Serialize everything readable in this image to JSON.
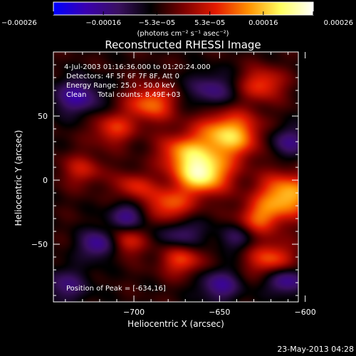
{
  "chart_data": {
    "type": "heatmap",
    "title": "Reconstructed RHESSI Image",
    "xlabel": "Heliocentric X (arcsec)",
    "ylabel": "Heliocentric Y (arcsec)",
    "xlim": [
      -747,
      -604
    ],
    "ylim": [
      -95,
      100
    ],
    "x_ticks": [
      -700,
      -650,
      -600
    ],
    "y_ticks": [
      50,
      0,
      -50
    ],
    "x_tick_labels": [
      "−700",
      "−650",
      "−600"
    ],
    "y_tick_labels": [
      "50",
      "0",
      "−50"
    ],
    "colorbar": {
      "range": [
        -0.00026,
        0.00026
      ],
      "ticks": [
        -0.00026,
        -0.00016,
        -5.3e-05,
        5.3e-05,
        0.00016,
        0.00026
      ],
      "tick_labels": [
        "−0.00026",
        "−0.00016",
        "−5.3e−05",
        "5.3e−05",
        "0.00016",
        "0.00026"
      ],
      "unit_label": "(photons cm⁻² s⁻¹ asec⁻²)",
      "colors": [
        "#0000ff",
        "#3a00b0",
        "#3a1060",
        "#000000",
        "#7a0000",
        "#e31a00",
        "#ff9000",
        "#ffff60",
        "#ffffff"
      ]
    },
    "info_lines": [
      "4-Jul-2003 01:16:36.000 to 01:20:24.000",
      "Detectors: 4F 5F 6F 7F 8F, Att 0",
      "Energy Range: 25.0 - 50.0 keV",
      "Clean     Total counts: 8.49E+03"
    ],
    "peak_label": "Position of Peak = [-634,16]",
    "peak": [
      -634,
      16
    ],
    "sources": [
      {
        "x": -660,
        "y": 5,
        "sigma": 11,
        "amp": 1.0
      },
      {
        "x": -645,
        "y": 35,
        "sigma": 13,
        "amp": 0.85
      },
      {
        "x": -672,
        "y": 22,
        "sigma": 10,
        "amp": 0.55
      },
      {
        "x": -690,
        "y": 60,
        "sigma": 10,
        "amp": 0.6
      },
      {
        "x": -712,
        "y": 40,
        "sigma": 9,
        "amp": 0.45
      },
      {
        "x": -625,
        "y": 75,
        "sigma": 9,
        "amp": 0.5
      },
      {
        "x": -611,
        "y": -12,
        "sigma": 12,
        "amp": 0.8
      },
      {
        "x": -627,
        "y": -30,
        "sigma": 9,
        "amp": 0.5
      },
      {
        "x": -680,
        "y": -20,
        "sigma": 10,
        "amp": 0.55
      },
      {
        "x": -700,
        "y": -5,
        "sigma": 8,
        "amp": 0.4
      },
      {
        "x": -705,
        "y": -48,
        "sigma": 8,
        "amp": 0.45
      },
      {
        "x": -672,
        "y": -62,
        "sigma": 9,
        "amp": 0.5
      },
      {
        "x": -620,
        "y": -62,
        "sigma": 10,
        "amp": 0.55
      },
      {
        "x": -730,
        "y": 8,
        "sigma": 9,
        "amp": 0.35
      },
      {
        "x": -733,
        "y": 65,
        "sigma": 10,
        "amp": -0.5
      },
      {
        "x": -720,
        "y": -50,
        "sigma": 8,
        "amp": -0.55
      },
      {
        "x": -703,
        "y": -28,
        "sigma": 8,
        "amp": -0.45
      },
      {
        "x": -672,
        "y": -42,
        "sigma": 9,
        "amp": -0.4
      },
      {
        "x": -655,
        "y": 70,
        "sigma": 10,
        "amp": -0.4
      },
      {
        "x": -610,
        "y": 30,
        "sigma": 9,
        "amp": -0.4
      },
      {
        "x": -650,
        "y": -82,
        "sigma": 9,
        "amp": -0.45
      },
      {
        "x": -612,
        "y": -78,
        "sigma": 8,
        "amp": -0.55
      },
      {
        "x": -740,
        "y": -82,
        "sigma": 10,
        "amp": -0.35
      },
      {
        "x": -640,
        "y": -45,
        "sigma": 8,
        "amp": -0.3
      }
    ]
  },
  "footer": {
    "timestamp": "23-May-2013 04:28"
  }
}
